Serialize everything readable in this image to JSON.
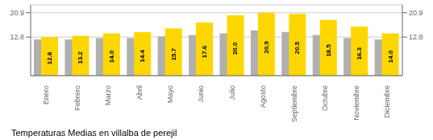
{
  "chart_data": {
    "type": "bar",
    "title": "Temperaturas Medias en villalba de perejil",
    "categories": [
      "Enero",
      "Febrero",
      "Marzo",
      "Abril",
      "Mayo",
      "Junio",
      "Julio",
      "Agosto",
      "Septiembre",
      "Octubre",
      "Noviembre",
      "Diciembre"
    ],
    "series": [
      {
        "color": "#B0B0B0",
        "values": [
          12.0,
          12.0,
          12.5,
          12.5,
          13.0,
          13.5,
          14.0,
          15.0,
          14.5,
          13.5,
          12.5,
          12.0
        ]
      },
      {
        "color": "#FFD700",
        "values": [
          12.8,
          13.2,
          14.0,
          14.4,
          15.7,
          17.6,
          20.0,
          20.9,
          20.5,
          18.5,
          16.3,
          14.0
        ],
        "data_labels": true,
        "value_labels": [
          "12.8",
          "13.2",
          "14.0",
          "14.4",
          "15.7",
          "17.6",
          "20.0",
          "20.9",
          "20.5",
          "18.5",
          "16.3",
          "14.0"
        ]
      }
    ],
    "ylim": [
      0,
      23.5
    ],
    "yticks": [
      12.8,
      20.9
    ],
    "grid": true
  }
}
